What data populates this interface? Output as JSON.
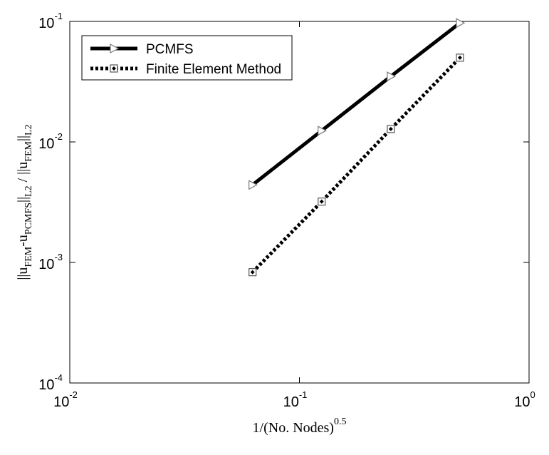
{
  "chart_data": {
    "type": "line",
    "xscale": "log",
    "yscale": "log",
    "x": [
      0.0625,
      0.125,
      0.25,
      0.5
    ],
    "series": [
      {
        "name": "PCMFS",
        "color": "#000000",
        "line_style": "solid",
        "marker": "triangle-right",
        "values": [
          0.0044,
          0.0124,
          0.035,
          0.097
        ]
      },
      {
        "name": "Finite Element Method",
        "color": "#000000",
        "line_style": "dotted",
        "marker": "square",
        "values": [
          0.00083,
          0.0032,
          0.0128,
          0.05
        ]
      }
    ],
    "xlim": [
      0.01,
      1
    ],
    "ylim": [
      0.0001,
      0.1
    ],
    "xticks": [
      {
        "value": 0.01,
        "label": "10",
        "sup": "-2"
      },
      {
        "value": 0.1,
        "label": "10",
        "sup": "-1"
      },
      {
        "value": 1,
        "label": "10",
        "sup": "0"
      }
    ],
    "yticks": [
      {
        "value": 0.0001,
        "label": "10",
        "sup": "-4"
      },
      {
        "value": 0.001,
        "label": "10",
        "sup": "-3"
      },
      {
        "value": 0.01,
        "label": "10",
        "sup": "-2"
      },
      {
        "value": 0.1,
        "label": "10",
        "sup": "-1"
      }
    ],
    "xlabel": {
      "text": "1/(No. Nodes)",
      "sup": "0.5"
    },
    "ylabel": [
      {
        "text": "||u",
        "sub": false
      },
      {
        "text": "FEM",
        "sub": true
      },
      {
        "text": "-u",
        "sub": false
      },
      {
        "text": "PCMFS",
        "sub": true
      },
      {
        "text": "||",
        "sub": false
      },
      {
        "text": "L2",
        "sub": true
      },
      {
        "text": " / ||u",
        "sub": false
      },
      {
        "text": "FEM",
        "sub": true
      },
      {
        "text": "||",
        "sub": false
      },
      {
        "text": "L2",
        "sub": true
      }
    ],
    "legend": "upper-left"
  }
}
